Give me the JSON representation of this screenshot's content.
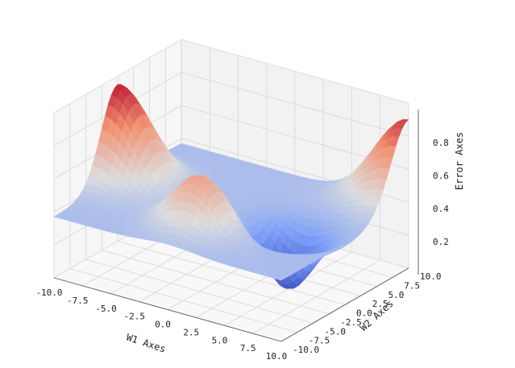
{
  "chart_data": {
    "type": "surface",
    "title": "",
    "xlabel": "W1 Axes",
    "ylabel": "W2 Axes",
    "zlabel": "Error Axes",
    "xlim": [
      -10,
      10
    ],
    "ylim": [
      -10,
      10
    ],
    "x_ticks": [
      "-10.0",
      "-7.5",
      "-5.0",
      "-2.5",
      "0.0",
      "2.5",
      "5.0",
      "7.5",
      "10.0"
    ],
    "y_ticks": [
      "-10.0",
      "-7.5",
      "-5.0",
      "-2.5",
      "0.0",
      "2.5",
      "5.0",
      "7.5",
      "10.0"
    ],
    "z_ticks": [
      "0.2",
      "0.4",
      "0.6",
      "0.8"
    ],
    "colormap": "coolwarm",
    "grid": true,
    "features": [
      {
        "kind": "peak",
        "w1": -10,
        "w2": 0,
        "error": 0.95
      },
      {
        "kind": "peak",
        "w1": 10,
        "w2": 10,
        "error": 0.9
      },
      {
        "kind": "peak",
        "w1": 0,
        "w2": -5,
        "error": 0.7
      },
      {
        "kind": "trough",
        "w1": 5,
        "w2": 0,
        "error": 0.0
      }
    ]
  }
}
